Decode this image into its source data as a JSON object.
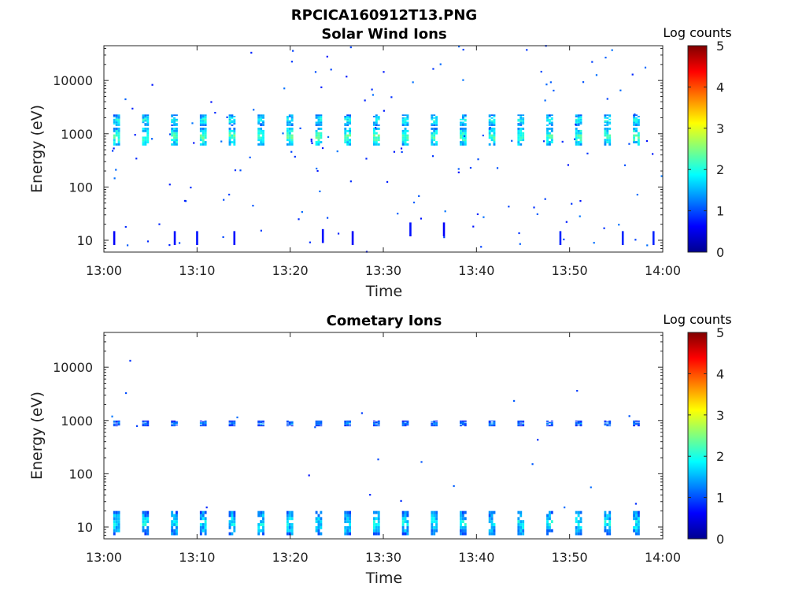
{
  "figure_title": "RPCICA160912T13.PNG",
  "chart_data": [
    {
      "type": "heatmap",
      "title": "Solar Wind Ions",
      "xlabel": "Time",
      "ylabel": "Energy (eV)",
      "x_range": [
        "13:00",
        "14:00"
      ],
      "x_ticks": [
        "13:00",
        "13:10",
        "13:20",
        "13:30",
        "13:40",
        "13:50",
        "14:00"
      ],
      "ylim": [
        6,
        45000
      ],
      "y_scale": "log",
      "y_ticks": [
        "10",
        "100",
        "1000",
        "10000"
      ],
      "colorbar": {
        "label": "Log counts",
        "range": [
          0,
          5
        ],
        "ticks": [
          "0",
          "1",
          "2",
          "3",
          "4",
          "5"
        ],
        "colormap": "jet"
      },
      "sweep_minutes": [
        1.0,
        4.1,
        7.2,
        10.3,
        13.4,
        16.5,
        19.6,
        22.7,
        25.8,
        28.9,
        32.0,
        35.1,
        38.2,
        41.3,
        44.4,
        47.5,
        50.6,
        53.7,
        56.8
      ],
      "bands": [
        {
          "energy_low": 600,
          "energy_high": 1300,
          "log_counts": 2.0
        },
        {
          "energy_low": 1400,
          "energy_high": 2300,
          "log_counts": 1.7
        }
      ],
      "low_energy_marks": [
        {
          "minute": 1.0,
          "energy": 11,
          "log_counts": 0.6
        },
        {
          "minute": 7.5,
          "energy": 11,
          "log_counts": 0.7
        },
        {
          "minute": 9.9,
          "energy": 11,
          "log_counts": 0.7
        },
        {
          "minute": 13.9,
          "energy": 11,
          "log_counts": 0.7
        },
        {
          "minute": 23.4,
          "energy": 12,
          "log_counts": 0.7
        },
        {
          "minute": 26.6,
          "energy": 11,
          "log_counts": 0.6
        },
        {
          "minute": 32.8,
          "energy": 16,
          "log_counts": 0.7
        },
        {
          "minute": 36.4,
          "energy": 16,
          "log_counts": 0.6
        },
        {
          "minute": 48.9,
          "energy": 11,
          "log_counts": 0.8
        },
        {
          "minute": 55.6,
          "energy": 11,
          "log_counts": 0.8
        },
        {
          "minute": 58.9,
          "energy": 11,
          "log_counts": 0.8
        }
      ]
    },
    {
      "type": "heatmap",
      "title": "Cometary Ions",
      "xlabel": "Time",
      "ylabel": "Energy (eV)",
      "x_range": [
        "13:00",
        "14:00"
      ],
      "x_ticks": [
        "13:00",
        "13:10",
        "13:20",
        "13:30",
        "13:40",
        "13:50",
        "14:00"
      ],
      "ylim": [
        6,
        45000
      ],
      "y_scale": "log",
      "y_ticks": [
        "10",
        "100",
        "1000",
        "10000"
      ],
      "colorbar": {
        "label": "Log counts",
        "range": [
          0,
          5
        ],
        "ticks": [
          "0",
          "1",
          "2",
          "3",
          "4",
          "5"
        ],
        "colormap": "jet"
      },
      "sweep_minutes": [
        1.0,
        4.1,
        7.2,
        10.3,
        13.4,
        16.5,
        19.6,
        22.7,
        25.8,
        28.9,
        32.0,
        35.1,
        38.2,
        41.3,
        44.4,
        47.5,
        50.6,
        53.7,
        56.8
      ],
      "bands": [
        {
          "energy_low": 780,
          "energy_high": 1000,
          "log_counts": 1.1
        },
        {
          "energy_low": 7,
          "energy_high": 20,
          "log_counts": 1.6
        }
      ]
    }
  ]
}
